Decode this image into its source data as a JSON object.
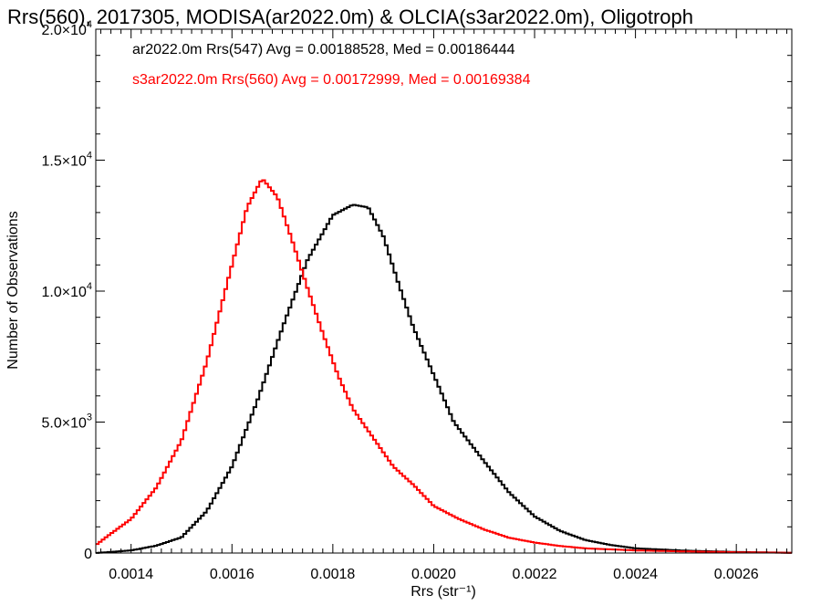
{
  "chart_data": {
    "type": "line",
    "title": "Rrs(560), 2017305, MODISA(ar2022.0m) & OLCIA(s3ar2022.0m), Oligotroph",
    "xlabel": "Rrs (str⁻¹)",
    "ylabel": "Number of Observations",
    "xlim": [
      0.00133,
      0.00271
    ],
    "ylim": [
      0,
      20000
    ],
    "x_tick_values": [
      0.0014,
      0.0016,
      0.0018,
      0.002,
      0.0022,
      0.0024,
      0.0026
    ],
    "x_tick_labels": [
      "0.0014",
      "0.0016",
      "0.0018",
      "0.0020",
      "0.0022",
      "0.0024",
      "0.0026"
    ],
    "y_ticks": [
      {
        "value": 0,
        "mantissa": "0",
        "exponent": ""
      },
      {
        "value": 5000,
        "mantissa": "5.0×10",
        "exponent": "3"
      },
      {
        "value": 10000,
        "mantissa": "1.0×10",
        "exponent": "4"
      },
      {
        "value": 15000,
        "mantissa": "1.5×10",
        "exponent": "4"
      },
      {
        "value": 20000,
        "mantissa": "2.0×10",
        "exponent": "4"
      }
    ],
    "grid": false,
    "step_style": "histogram",
    "series": [
      {
        "name": "ar2022.0m Rrs(547)",
        "color": "#000000",
        "legend_text": "ar2022.0m Rrs(547) Avg = 0.00188528, Med = 0.00186444",
        "points": [
          [
            0.00133,
            0
          ],
          [
            0.0014,
            100
          ],
          [
            0.00145,
            280
          ],
          [
            0.0015,
            600
          ],
          [
            0.00155,
            1600
          ],
          [
            0.0016,
            3300
          ],
          [
            0.00165,
            5800
          ],
          [
            0.0017,
            8600
          ],
          [
            0.00175,
            11200
          ],
          [
            0.0018,
            12900
          ],
          [
            0.00184,
            13300
          ],
          [
            0.00187,
            13200
          ],
          [
            0.0019,
            12100
          ],
          [
            0.00193,
            10300
          ],
          [
            0.00196,
            8600
          ],
          [
            0.002,
            6800
          ],
          [
            0.00204,
            5000
          ],
          [
            0.0021,
            3500
          ],
          [
            0.00215,
            2300
          ],
          [
            0.0022,
            1400
          ],
          [
            0.00225,
            850
          ],
          [
            0.0023,
            500
          ],
          [
            0.00235,
            310
          ],
          [
            0.0024,
            180
          ],
          [
            0.0025,
            90
          ],
          [
            0.0026,
            40
          ],
          [
            0.00271,
            10
          ]
        ]
      },
      {
        "name": "s3ar2022.0m Rrs(560)",
        "color": "#ff0000",
        "legend_text": "s3ar2022.0m Rrs(560) Avg = 0.00172999, Med = 0.00169384",
        "points": [
          [
            0.00133,
            300
          ],
          [
            0.00135,
            600
          ],
          [
            0.0014,
            1300
          ],
          [
            0.00145,
            2500
          ],
          [
            0.0015,
            4300
          ],
          [
            0.00155,
            7300
          ],
          [
            0.0016,
            11000
          ],
          [
            0.00163,
            13200
          ],
          [
            0.00166,
            14300
          ],
          [
            0.00169,
            13600
          ],
          [
            0.00172,
            11900
          ],
          [
            0.00175,
            10100
          ],
          [
            0.00178,
            8400
          ],
          [
            0.00181,
            6800
          ],
          [
            0.00184,
            5500
          ],
          [
            0.00188,
            4400
          ],
          [
            0.00192,
            3300
          ],
          [
            0.00196,
            2600
          ],
          [
            0.002,
            1800
          ],
          [
            0.00205,
            1300
          ],
          [
            0.0021,
            900
          ],
          [
            0.00215,
            580
          ],
          [
            0.0022,
            400
          ],
          [
            0.00225,
            270
          ],
          [
            0.0023,
            180
          ],
          [
            0.0024,
            100
          ],
          [
            0.0025,
            60
          ],
          [
            0.0026,
            30
          ],
          [
            0.00271,
            10
          ]
        ]
      }
    ]
  }
}
